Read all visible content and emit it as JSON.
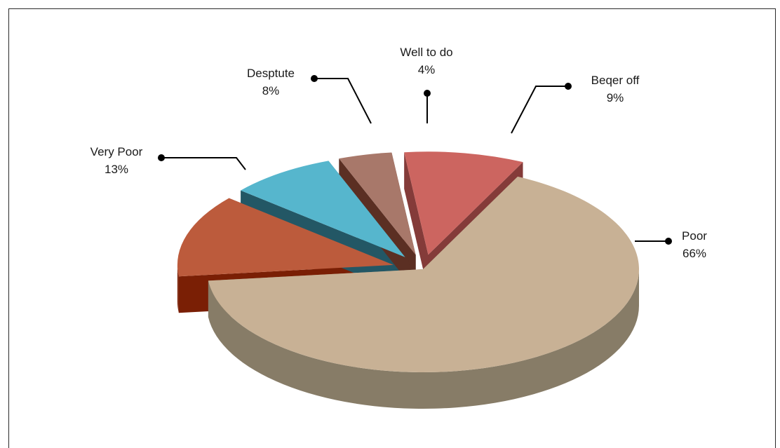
{
  "chart_data": {
    "type": "pie",
    "style": "3d-exploded",
    "title": "",
    "slices": [
      {
        "label": "Poor",
        "value": 66,
        "percent_text": "66%",
        "top_color": "#c8b195",
        "side_color": "#877c67"
      },
      {
        "label": "Very Poor",
        "value": 13,
        "percent_text": "13%",
        "top_color": "#bc5b3c",
        "side_color": "#7a1f05"
      },
      {
        "label": "Desptute",
        "value": 8,
        "percent_text": "8%",
        "top_color": "#56b6cd",
        "side_color": "#235765"
      },
      {
        "label": "Well to do",
        "value": 4,
        "percent_text": "4%",
        "top_color": "#a8786a",
        "side_color": "#5b2f23"
      },
      {
        "label": "Beqer off",
        "value": 9,
        "percent_text": "9%",
        "top_color": "#cc6560",
        "side_color": "#843b39"
      }
    ],
    "legend": "none",
    "data_labels": "callout-with-leader-lines"
  }
}
